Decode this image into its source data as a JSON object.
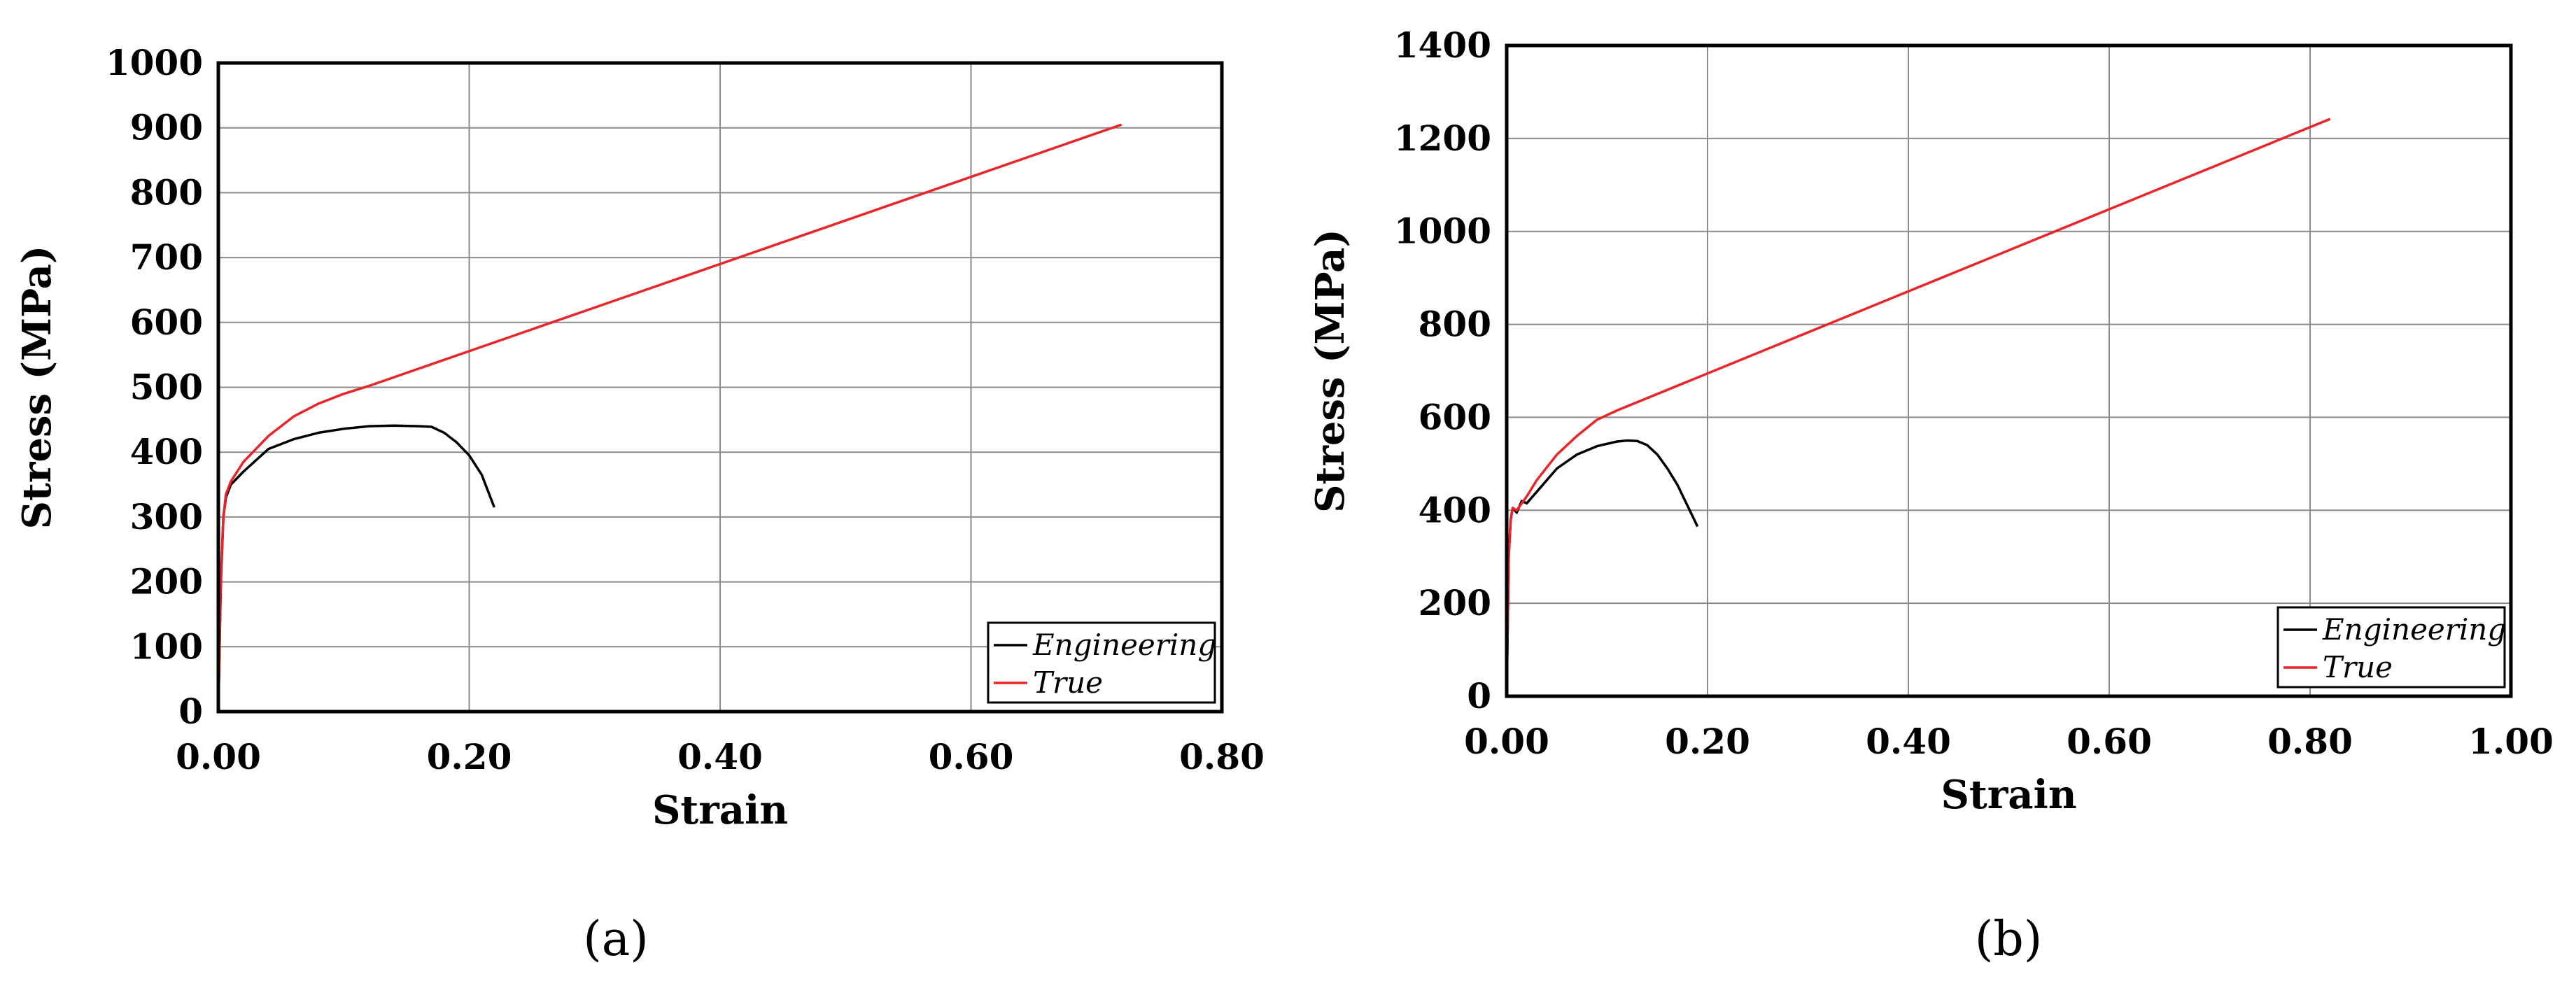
{
  "chart_data": [
    {
      "type": "line",
      "panel_label": "(a)",
      "xlabel": "Strain",
      "ylabel": "Stress (MPa)",
      "xlim": [
        0,
        0.8
      ],
      "ylim": [
        0,
        1000
      ],
      "x_ticks": [
        0,
        0.2,
        0.4,
        0.6,
        0.8
      ],
      "x_tick_labels": [
        "0.00",
        "0.20",
        "0.40",
        "0.60",
        "0.80"
      ],
      "y_ticks": [
        0,
        100,
        200,
        300,
        400,
        500,
        600,
        700,
        800,
        900,
        1000
      ],
      "y_tick_labels": [
        "0",
        "100",
        "200",
        "300",
        "400",
        "500",
        "600",
        "700",
        "800",
        "900",
        "1000"
      ],
      "grid": true,
      "legend_position": "bottom-right",
      "series": [
        {
          "name": "Engineering",
          "color": "#000000",
          "x": [
            0,
            0.002,
            0.004,
            0.006,
            0.01,
            0.02,
            0.04,
            0.06,
            0.08,
            0.1,
            0.12,
            0.14,
            0.16,
            0.17,
            0.18,
            0.19,
            0.2,
            0.21,
            0.22
          ],
          "y": [
            0,
            200,
            300,
            330,
            350,
            370,
            405,
            420,
            430,
            436,
            440,
            441,
            440,
            439,
            430,
            415,
            395,
            365,
            315
          ]
        },
        {
          "name": "True",
          "color": "#e8262a",
          "x": [
            0,
            0.002,
            0.004,
            0.006,
            0.01,
            0.02,
            0.04,
            0.06,
            0.08,
            0.1,
            0.12,
            0.72
          ],
          "y": [
            0,
            210,
            300,
            335,
            355,
            385,
            425,
            455,
            475,
            490,
            502,
            905
          ]
        }
      ]
    },
    {
      "type": "line",
      "panel_label": "(b)",
      "xlabel": "Strain",
      "ylabel": "Stress (MPa)",
      "xlim": [
        0,
        1.0
      ],
      "ylim": [
        0,
        1400
      ],
      "x_ticks": [
        0,
        0.2,
        0.4,
        0.6,
        0.8,
        1.0
      ],
      "x_tick_labels": [
        "0.00",
        "0.20",
        "0.40",
        "0.60",
        "0.80",
        "1.00"
      ],
      "y_ticks": [
        0,
        200,
        400,
        600,
        800,
        1000,
        1200,
        1400
      ],
      "y_tick_labels": [
        "0",
        "200",
        "400",
        "600",
        "800",
        "1000",
        "1200",
        "1400"
      ],
      "grid": true,
      "legend_position": "bottom-right",
      "series": [
        {
          "name": "Engineering",
          "color": "#000000",
          "x": [
            0,
            0.002,
            0.004,
            0.006,
            0.01,
            0.015,
            0.02,
            0.03,
            0.05,
            0.07,
            0.09,
            0.11,
            0.12,
            0.13,
            0.14,
            0.15,
            0.16,
            0.17,
            0.18,
            0.19
          ],
          "y": [
            0,
            300,
            380,
            405,
            395,
            420,
            415,
            440,
            490,
            520,
            538,
            548,
            550,
            549,
            540,
            520,
            490,
            455,
            410,
            365
          ]
        },
        {
          "name": "True",
          "color": "#e8262a",
          "x": [
            0,
            0.002,
            0.004,
            0.006,
            0.01,
            0.02,
            0.03,
            0.05,
            0.07,
            0.09,
            0.11,
            0.82
          ],
          "y": [
            0,
            300,
            380,
            405,
            400,
            430,
            465,
            520,
            560,
            595,
            615,
            1242
          ]
        }
      ]
    }
  ]
}
